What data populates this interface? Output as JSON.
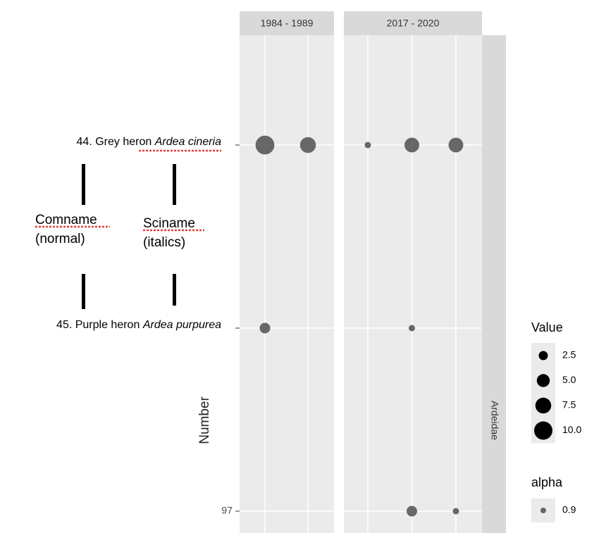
{
  "chart_data": {
    "type": "scatter",
    "y_label": "Number",
    "y_categories": [
      {
        "name": "44. Grey heron",
        "sciname": "Ardea cineria"
      },
      {
        "name": "45. Purple heron",
        "sciname": "Ardea purpurea"
      },
      {
        "name": "97"
      }
    ],
    "facets": [
      {
        "label": "1984 - 1989",
        "categories": [
          null,
          null
        ],
        "values": [
          [
            10,
            7
          ],
          [
            3,
            null
          ],
          [
            null,
            null
          ]
        ]
      },
      {
        "label": "2017 - 2020",
        "categories": [
          null,
          null,
          null
        ],
        "values": [
          [
            1,
            6,
            6
          ],
          [
            null,
            1,
            null
          ],
          [
            null,
            3,
            1
          ]
        ]
      }
    ],
    "row_strip": "Ardeidae",
    "color": "#595959",
    "size_legend": {
      "title": "Value",
      "values": [
        2.5,
        {
          "value": 5,
          "label": "5.0"
        },
        7.5,
        {
          "value": 10,
          "label": "10.0"
        }
      ]
    },
    "alpha_legend": {
      "title": "alpha",
      "values": [
        0.9
      ]
    },
    "annotations": {
      "comname": "Comname",
      "comname_note": "(normal)",
      "sciname": "Sciname",
      "sciname_note": "(italics)"
    }
  }
}
